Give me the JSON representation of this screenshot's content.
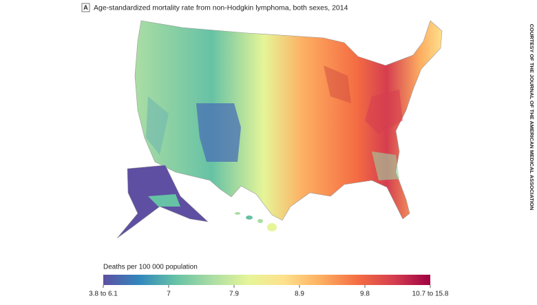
{
  "panel_label": "A",
  "title": "Age-standardized mortality rate from non-Hodgkin lymphoma, both sexes, 2014",
  "legend": {
    "title": "Deaths per 100 000 population",
    "ticks": [
      "3.8 to 6.1",
      "7",
      "7.9",
      "8.9",
      "9.8",
      "10.7 to 15.8"
    ],
    "colors": [
      "#5e4fa2",
      "#3288bd",
      "#66c2a5",
      "#abdda4",
      "#e6f598",
      "#fee08b",
      "#fdae61",
      "#f46d43",
      "#d53e4f",
      "#9e0142"
    ]
  },
  "credit": "COURTESY OF THE JOURNAL OF THE AMERICAN MEDICAL ASSOCIATION"
}
